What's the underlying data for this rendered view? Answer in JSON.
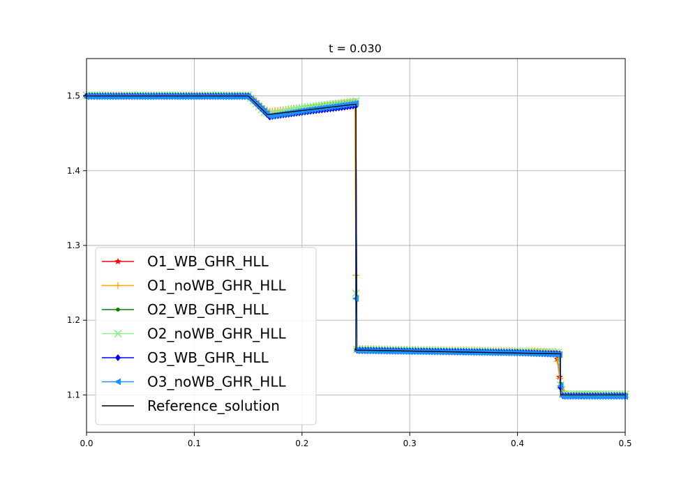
{
  "chart_data": {
    "type": "line",
    "title": "t = 0.030",
    "xlabel": "",
    "ylabel": "",
    "xlim": [
      0.0,
      0.5
    ],
    "ylim": [
      1.05,
      1.55
    ],
    "xticks": [
      0.0,
      0.1,
      0.2,
      0.3,
      0.4,
      0.5
    ],
    "xtick_labels": [
      "0.0",
      "0.1",
      "0.2",
      "0.3",
      "0.4",
      "0.5"
    ],
    "yticks": [
      1.1,
      1.2,
      1.3,
      1.4,
      1.5
    ],
    "ytick_labels": [
      "1.1",
      "1.2",
      "1.3",
      "1.4",
      "1.5"
    ],
    "grid": true,
    "legend_position": "lower-left",
    "series": [
      {
        "name": "O1_WB_GHR_HLL",
        "color": "#ff0000",
        "marker": "star",
        "x": [
          0.0,
          0.15,
          0.155,
          0.16,
          0.165,
          0.17,
          0.2,
          0.25,
          0.251,
          0.3,
          0.35,
          0.4,
          0.435,
          0.437,
          0.439,
          0.441,
          0.443,
          0.445,
          0.5
        ],
        "y": [
          1.5,
          1.5,
          1.496,
          1.489,
          1.482,
          1.478,
          1.484,
          1.491,
          1.161,
          1.16,
          1.159,
          1.158,
          1.157,
          1.148,
          1.124,
          1.11,
          1.104,
          1.1,
          1.1
        ]
      },
      {
        "name": "O1_noWB_GHR_HLL",
        "color": "#ffa500",
        "marker": "plus",
        "x": [
          0.0,
          0.15,
          0.155,
          0.16,
          0.165,
          0.17,
          0.2,
          0.249,
          0.25,
          0.251,
          0.3,
          0.35,
          0.4,
          0.435,
          0.437,
          0.439,
          0.441,
          0.443,
          0.445,
          0.5
        ],
        "y": [
          1.501,
          1.501,
          1.497,
          1.49,
          1.483,
          1.479,
          1.485,
          1.492,
          1.26,
          1.162,
          1.161,
          1.16,
          1.159,
          1.158,
          1.145,
          1.122,
          1.111,
          1.105,
          1.101,
          1.101
        ]
      },
      {
        "name": "O2_WB_GHR_HLL",
        "color": "#008000",
        "marker": "dot",
        "x": [
          0.0,
          0.15,
          0.17,
          0.2,
          0.25,
          0.251,
          0.3,
          0.35,
          0.4,
          0.438,
          0.44,
          0.442,
          0.5
        ],
        "y": [
          1.5,
          1.5,
          1.474,
          1.481,
          1.489,
          1.16,
          1.159,
          1.158,
          1.157,
          1.156,
          1.115,
          1.1,
          1.1
        ]
      },
      {
        "name": "O2_noWB_GHR_HLL",
        "color": "#90ee90",
        "marker": "x",
        "x": [
          0.0,
          0.15,
          0.165,
          0.17,
          0.2,
          0.25,
          0.25,
          0.251,
          0.3,
          0.35,
          0.4,
          0.438,
          0.44,
          0.442,
          0.5
        ],
        "y": [
          1.501,
          1.501,
          1.478,
          1.476,
          1.484,
          1.493,
          1.236,
          1.161,
          1.16,
          1.159,
          1.158,
          1.157,
          1.113,
          1.101,
          1.101
        ]
      },
      {
        "name": "O3_WB_GHR_HLL",
        "color": "#0000ff",
        "marker": "diamond",
        "x": [
          0.0,
          0.15,
          0.17,
          0.2,
          0.25,
          0.251,
          0.3,
          0.35,
          0.4,
          0.439,
          0.44,
          0.442,
          0.5
        ],
        "y": [
          1.5,
          1.5,
          1.472,
          1.478,
          1.487,
          1.16,
          1.159,
          1.158,
          1.157,
          1.155,
          1.11,
          1.099,
          1.099
        ]
      },
      {
        "name": "O3_noWB_GHR_HLL",
        "color": "#1e90ff",
        "marker": "triangle-left",
        "x": [
          0.0,
          0.15,
          0.17,
          0.2,
          0.25,
          0.25,
          0.251,
          0.3,
          0.35,
          0.4,
          0.439,
          0.44,
          0.442,
          0.5
        ],
        "y": [
          1.499,
          1.499,
          1.473,
          1.48,
          1.49,
          1.229,
          1.159,
          1.158,
          1.157,
          1.156,
          1.154,
          1.112,
          1.098,
          1.098
        ]
      },
      {
        "name": "Reference_solution",
        "color": "#000000",
        "marker": "none",
        "x": [
          0.0,
          0.15,
          0.168,
          0.25,
          0.25,
          0.44,
          0.44,
          0.5
        ],
        "y": [
          1.5,
          1.5,
          1.475,
          1.489,
          1.16,
          1.155,
          1.1,
          1.1
        ]
      }
    ]
  }
}
